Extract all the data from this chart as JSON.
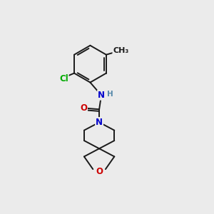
{
  "background_color": "#ebebeb",
  "bond_color": "#1a1a1a",
  "atom_colors": {
    "N": "#0000cc",
    "O": "#cc0000",
    "Cl": "#00aa00",
    "H": "#5588aa",
    "C": "#1a1a1a"
  },
  "font_size_atom": 8.5,
  "figsize": [
    3.0,
    3.0
  ],
  "dpi": 100,
  "lw": 1.4
}
